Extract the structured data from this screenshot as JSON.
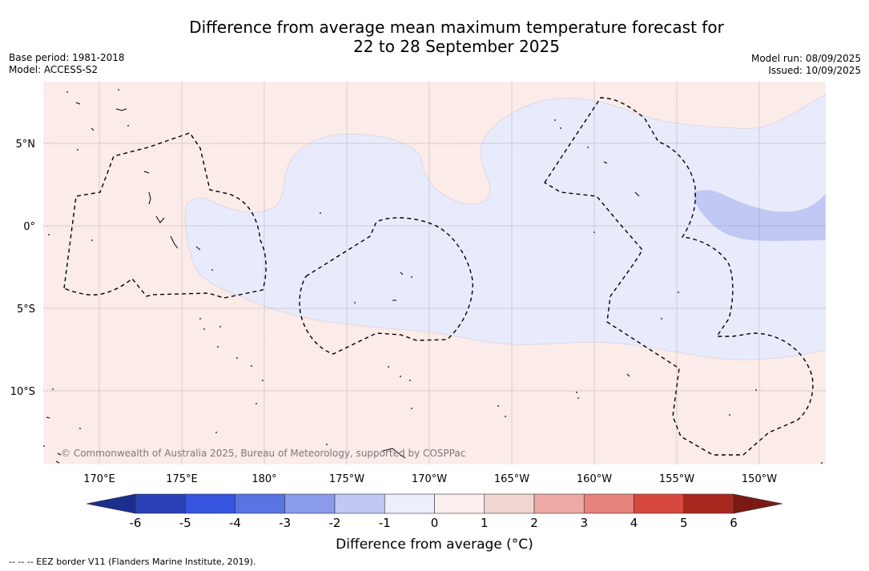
{
  "title": {
    "line1": "Difference from average mean maximum temperature forecast for",
    "line2": "22 to 28 September 2025"
  },
  "meta_left": {
    "base_period": "Base period: 1981-2018",
    "model": "Model: ACCESS-S2"
  },
  "meta_right": {
    "model_run": "Model run: 08/09/2025",
    "issued": "Issued: 10/09/2025"
  },
  "map": {
    "lat_labels": [
      "5°N",
      "0°",
      "5°S",
      "10°S"
    ],
    "lon_labels": [
      "170°E",
      "175°E",
      "180°",
      "175°W",
      "170°W",
      "165°W",
      "160°W",
      "155°W",
      "150°W"
    ],
    "copyright": "© Commonwealth of Australia 2025, Bureau of Meteorology, supported by COSPPac",
    "colors": {
      "ocean_warm": "#fbebe9",
      "cool_light": "#e8ebfb",
      "cool_medium": "#c0c8f3"
    }
  },
  "colorbar": {
    "tick_labels": [
      "-6",
      "-5",
      "-4",
      "-3",
      "-2",
      "-1",
      "0",
      "1",
      "2",
      "3",
      "4",
      "5",
      "6"
    ],
    "colors": [
      "#1c2e8e",
      "#2a3fb5",
      "#3654e0",
      "#5a73e3",
      "#8a9bea",
      "#c0c8f3",
      "#eceefc",
      "#fcf0ef",
      "#f0d6d3",
      "#edaaa4",
      "#e5837c",
      "#d8483f",
      "#a82820",
      "#7a1a14"
    ],
    "label": "Difference from average (°C)"
  },
  "footnote": "--  --  -- EEZ border V11 (Flanders Marine Institute, 2019)."
}
